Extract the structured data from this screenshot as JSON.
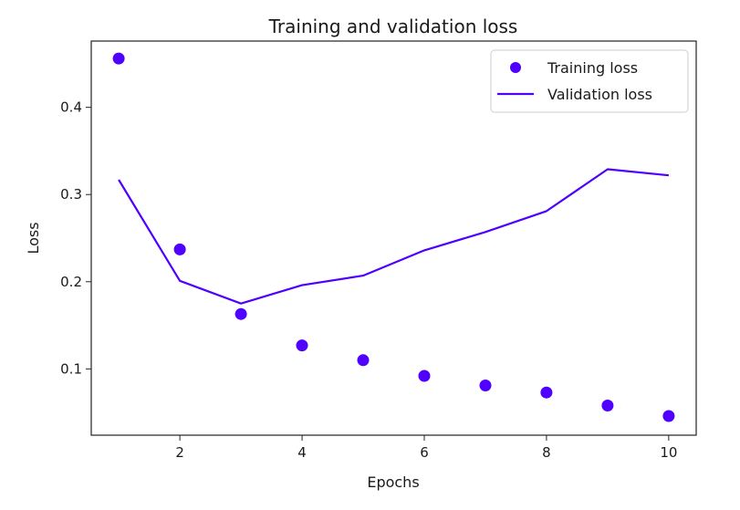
{
  "chart_data": {
    "type": "line",
    "title": "Training and validation loss",
    "xlabel": "Epochs",
    "ylabel": "Loss",
    "xlim": [
      0.55,
      10.45
    ],
    "ylim": [
      0.024,
      0.476
    ],
    "xticks": [
      2,
      4,
      6,
      8,
      10
    ],
    "yticks": [
      0.1,
      0.2,
      0.3,
      0.4
    ],
    "xtick_labels": [
      "2",
      "4",
      "6",
      "8",
      "10"
    ],
    "ytick_labels": [
      "0.1",
      "0.2",
      "0.3",
      "0.4"
    ],
    "grid": false,
    "legend_position": "top-right",
    "x": [
      1,
      2,
      3,
      4,
      5,
      6,
      7,
      8,
      9,
      10
    ],
    "series": [
      {
        "name": "Training loss",
        "kind": "scatter",
        "color": "#4f00ff",
        "values": [
          0.456,
          0.237,
          0.163,
          0.127,
          0.11,
          0.092,
          0.081,
          0.073,
          0.058,
          0.046
        ]
      },
      {
        "name": "Validation loss",
        "kind": "line",
        "color": "#4f00ff",
        "values": [
          0.317,
          0.201,
          0.175,
          0.196,
          0.207,
          0.236,
          0.257,
          0.281,
          0.329,
          0.322
        ]
      }
    ]
  }
}
